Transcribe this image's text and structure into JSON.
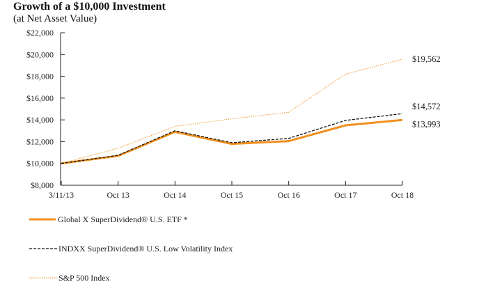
{
  "chart_data": {
    "type": "line",
    "title": "Growth of a $10,000 Investment",
    "subtitle": "(at Net Asset Value)",
    "categories": [
      "3/11/13",
      "Oct 13",
      "Oct 14",
      "Oct 15",
      "Oct 16",
      "Oct 17",
      "Oct 18"
    ],
    "y_ticks": [
      "$8,000",
      "$10,000",
      "$12,000",
      "$14,000",
      "$16,000",
      "$18,000",
      "$20,000",
      "$22,000"
    ],
    "ylim": [
      8000,
      22000
    ],
    "grid": false,
    "legend_position": "bottom",
    "series": [
      {
        "name": "Global X SuperDividend® U.S. ETF *",
        "values": [
          10000,
          10700,
          12900,
          11800,
          12050,
          13500,
          13993
        ],
        "end_label": "$13,993",
        "color": "#F0901E",
        "style": "solid"
      },
      {
        "name": "INDXX SuperDividend® U.S. Low Volatility Index",
        "values": [
          10000,
          10750,
          13000,
          11900,
          12300,
          13950,
          14572
        ],
        "end_label": "$14,572",
        "color": "#111111",
        "style": "dashed"
      },
      {
        "name": "S&P 500 Index",
        "values": [
          10000,
          11400,
          13400,
          14100,
          14700,
          18200,
          19562
        ],
        "end_label": "$19,562",
        "color": "#F0901E",
        "style": "dotted"
      }
    ]
  }
}
